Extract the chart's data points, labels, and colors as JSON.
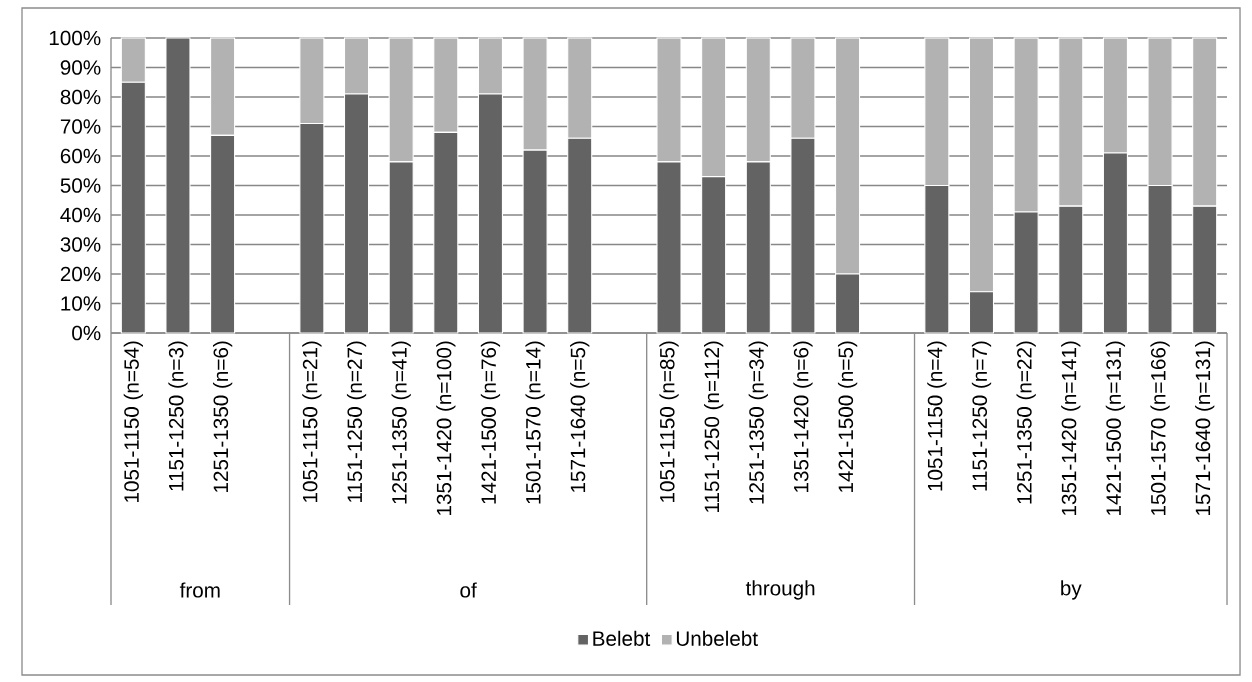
{
  "chart_data": {
    "type": "bar",
    "stacked": true,
    "categories": [
      "1051-1150 (n=54)",
      "1151-1250 (n=3)",
      "1251-1350 (n=6)",
      null,
      "1051-1150 (n=21)",
      "1151-1250 (n=27)",
      "1251-1350 (n=41)",
      "1351-1420 (n=100)",
      "1421-1500 (n=76)",
      "1501-1570 (n=14)",
      "1571-1640 (n=5)",
      null,
      "1051-1150 (n=85)",
      "1151-1250 (n=112)",
      "1251-1350 (n=34)",
      "1351-1420 (n=6)",
      "1421-1500 (n=5)",
      null,
      "1051-1150 (n=4)",
      "1151-1250 (n=7)",
      "1251-1350 (n=22)",
      "1351-1420 (n=141)",
      "1421-1500 (n=131)",
      "1501-1570 (n=166)",
      "1571-1640 (n=131)"
    ],
    "series": [
      {
        "name": "Belebt",
        "color": "#636363",
        "values": [
          85,
          100,
          67,
          null,
          71,
          81,
          58,
          68,
          81,
          62,
          66,
          null,
          58,
          53,
          58,
          66,
          20,
          null,
          50,
          14,
          41,
          43,
          61,
          50,
          43
        ]
      },
      {
        "name": "Unbelebt",
        "color": "#b2b2b2",
        "values": [
          15,
          0,
          33,
          null,
          29,
          19,
          42,
          32,
          19,
          38,
          34,
          null,
          42,
          47,
          42,
          34,
          80,
          null,
          50,
          86,
          59,
          57,
          39,
          50,
          57
        ]
      }
    ],
    "annotations": [
      "from",
      "of",
      "through",
      "by"
    ],
    "ylim": [
      0,
      100
    ],
    "yticks": [
      {
        "value": 0,
        "label": "0%"
      },
      {
        "value": 10,
        "label": "10%"
      },
      {
        "value": 20,
        "label": "20%"
      },
      {
        "value": 30,
        "label": "30%"
      },
      {
        "value": 40,
        "label": "40%"
      },
      {
        "value": 50,
        "label": "50%"
      },
      {
        "value": 60,
        "label": "60%"
      },
      {
        "value": 70,
        "label": "70%"
      },
      {
        "value": 80,
        "label": "80%"
      },
      {
        "value": 90,
        "label": "90%"
      },
      {
        "value": 100,
        "label": "100%"
      }
    ],
    "grid": "y",
    "legend": "bottom"
  }
}
